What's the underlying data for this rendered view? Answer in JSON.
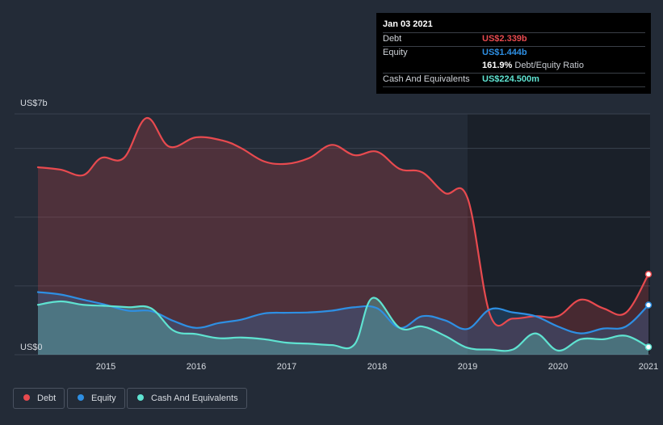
{
  "tooltip": {
    "date": "Jan 03 2021",
    "debt_label": "Debt",
    "debt_value": "US$2.339b",
    "equity_label": "Equity",
    "equity_value": "US$1.444b",
    "ratio_value": "161.9%",
    "ratio_label": "Debt/Equity Ratio",
    "cash_label": "Cash And Equivalents",
    "cash_value": "US$224.500m"
  },
  "colors": {
    "debt": "#e84a4f",
    "equity": "#2e8fe3",
    "cash": "#5fe3d1",
    "background": "#232b37"
  },
  "legend": [
    {
      "key": "debt",
      "label": "Debt"
    },
    {
      "key": "equity",
      "label": "Equity"
    },
    {
      "key": "cash",
      "label": "Cash And Equivalents"
    }
  ],
  "chart_data": {
    "type": "area",
    "title": "",
    "ylabel": "",
    "y_top_label": "US$7b",
    "y_bottom_label": "US$0",
    "ylim": [
      0,
      7
    ],
    "xlim": [
      2014.25,
      2021.05
    ],
    "x_ticks": [
      "2015",
      "2016",
      "2017",
      "2018",
      "2019",
      "2020",
      "2021"
    ],
    "x_tick_values": [
      2015,
      2016,
      2017,
      2018,
      2019,
      2020,
      2021
    ],
    "series": [
      {
        "name": "Debt",
        "key": "debt",
        "points": [
          [
            2014.25,
            5.45
          ],
          [
            2014.5,
            5.38
          ],
          [
            2014.75,
            5.22
          ],
          [
            2014.95,
            5.72
          ],
          [
            2015.2,
            5.72
          ],
          [
            2015.45,
            6.88
          ],
          [
            2015.7,
            6.05
          ],
          [
            2016.0,
            6.32
          ],
          [
            2016.3,
            6.22
          ],
          [
            2016.5,
            6.0
          ],
          [
            2016.75,
            5.62
          ],
          [
            2017.0,
            5.55
          ],
          [
            2017.25,
            5.72
          ],
          [
            2017.5,
            6.1
          ],
          [
            2017.75,
            5.8
          ],
          [
            2018.0,
            5.9
          ],
          [
            2018.25,
            5.4
          ],
          [
            2018.5,
            5.3
          ],
          [
            2018.75,
            4.7
          ],
          [
            2019.0,
            4.55
          ],
          [
            2019.25,
            1.15
          ],
          [
            2019.5,
            1.05
          ],
          [
            2019.75,
            1.12
          ],
          [
            2020.0,
            1.12
          ],
          [
            2020.25,
            1.6
          ],
          [
            2020.5,
            1.35
          ],
          [
            2020.75,
            1.22
          ],
          [
            2021.0,
            2.339
          ]
        ]
      },
      {
        "name": "Equity",
        "key": "equity",
        "points": [
          [
            2014.25,
            1.82
          ],
          [
            2014.5,
            1.75
          ],
          [
            2014.75,
            1.6
          ],
          [
            2015.0,
            1.45
          ],
          [
            2015.25,
            1.28
          ],
          [
            2015.5,
            1.27
          ],
          [
            2015.75,
            0.98
          ],
          [
            2016.0,
            0.78
          ],
          [
            2016.25,
            0.92
          ],
          [
            2016.5,
            1.02
          ],
          [
            2016.75,
            1.2
          ],
          [
            2017.0,
            1.22
          ],
          [
            2017.25,
            1.23
          ],
          [
            2017.5,
            1.28
          ],
          [
            2017.75,
            1.38
          ],
          [
            2018.0,
            1.35
          ],
          [
            2018.25,
            0.78
          ],
          [
            2018.5,
            1.12
          ],
          [
            2018.75,
            1.0
          ],
          [
            2019.0,
            0.75
          ],
          [
            2019.25,
            1.32
          ],
          [
            2019.5,
            1.23
          ],
          [
            2019.75,
            1.12
          ],
          [
            2020.0,
            0.82
          ],
          [
            2020.25,
            0.62
          ],
          [
            2020.5,
            0.76
          ],
          [
            2020.75,
            0.82
          ],
          [
            2021.0,
            1.444
          ]
        ]
      },
      {
        "name": "Cash And Equivalents",
        "key": "cash",
        "points": [
          [
            2014.25,
            1.45
          ],
          [
            2014.5,
            1.55
          ],
          [
            2014.75,
            1.45
          ],
          [
            2015.0,
            1.42
          ],
          [
            2015.25,
            1.38
          ],
          [
            2015.5,
            1.35
          ],
          [
            2015.75,
            0.7
          ],
          [
            2016.0,
            0.6
          ],
          [
            2016.25,
            0.48
          ],
          [
            2016.5,
            0.5
          ],
          [
            2016.75,
            0.45
          ],
          [
            2017.0,
            0.35
          ],
          [
            2017.25,
            0.32
          ],
          [
            2017.5,
            0.28
          ],
          [
            2017.75,
            0.3
          ],
          [
            2017.95,
            1.65
          ],
          [
            2018.25,
            0.78
          ],
          [
            2018.5,
            0.82
          ],
          [
            2018.75,
            0.55
          ],
          [
            2019.0,
            0.2
          ],
          [
            2019.25,
            0.15
          ],
          [
            2019.5,
            0.15
          ],
          [
            2019.75,
            0.62
          ],
          [
            2020.0,
            0.12
          ],
          [
            2020.25,
            0.45
          ],
          [
            2020.5,
            0.45
          ],
          [
            2020.75,
            0.55
          ],
          [
            2021.0,
            0.2245
          ]
        ]
      }
    ]
  }
}
